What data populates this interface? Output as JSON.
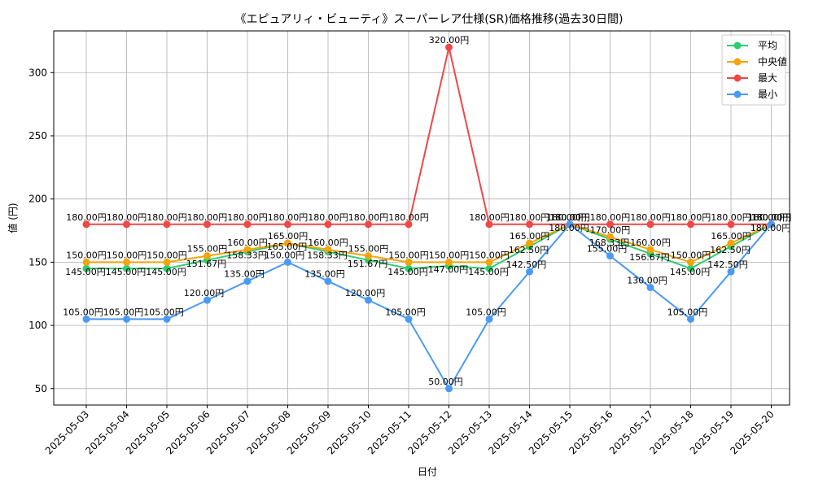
{
  "chart_data": {
    "type": "line",
    "title": "《エピュアリィ・ビューティ》スーパーレア仕様(SR)価格推移(過去30日間)",
    "xlabel": "日付",
    "ylabel": "値 (円)",
    "ylim": [
      37,
      333
    ],
    "yticks": [
      50,
      100,
      150,
      200,
      250,
      300
    ],
    "grid": true,
    "legend_position": "top-right",
    "label_suffix": "円",
    "categories": [
      "2025-05-03",
      "2025-05-04",
      "2025-05-05",
      "2025-05-06",
      "2025-05-07",
      "2025-05-08",
      "2025-05-09",
      "2025-05-10",
      "2025-05-11",
      "2025-05-12",
      "2025-05-13",
      "2025-05-14",
      "2025-05-15",
      "2025-05-16",
      "2025-05-17",
      "2025-05-18",
      "2025-05-19",
      "2025-05-20"
    ],
    "series": [
      {
        "name": "平均",
        "color": "#2ecc71",
        "values": [
          145,
          145,
          145,
          151.67,
          158.33,
          165,
          158.33,
          151.67,
          145,
          147,
          145,
          162.5,
          180,
          168.33,
          156.67,
          145,
          162.5,
          180
        ]
      },
      {
        "name": "中央値",
        "color": "#f5a30a",
        "values": [
          150,
          150,
          150,
          155,
          160,
          165,
          160,
          155,
          150,
          150,
          150,
          165,
          180,
          170,
          160,
          150,
          165,
          180
        ]
      },
      {
        "name": "最大",
        "color": "#f04747",
        "values": [
          180,
          180,
          180,
          180,
          180,
          180,
          180,
          180,
          180,
          320,
          180,
          180,
          180,
          180,
          180,
          180,
          180,
          180
        ]
      },
      {
        "name": "最小",
        "color": "#4a9af5",
        "values": [
          105,
          105,
          105,
          120,
          135,
          150,
          135,
          120,
          105,
          50,
          105,
          142.5,
          180,
          155,
          130,
          105,
          142.5,
          180
        ]
      }
    ]
  }
}
